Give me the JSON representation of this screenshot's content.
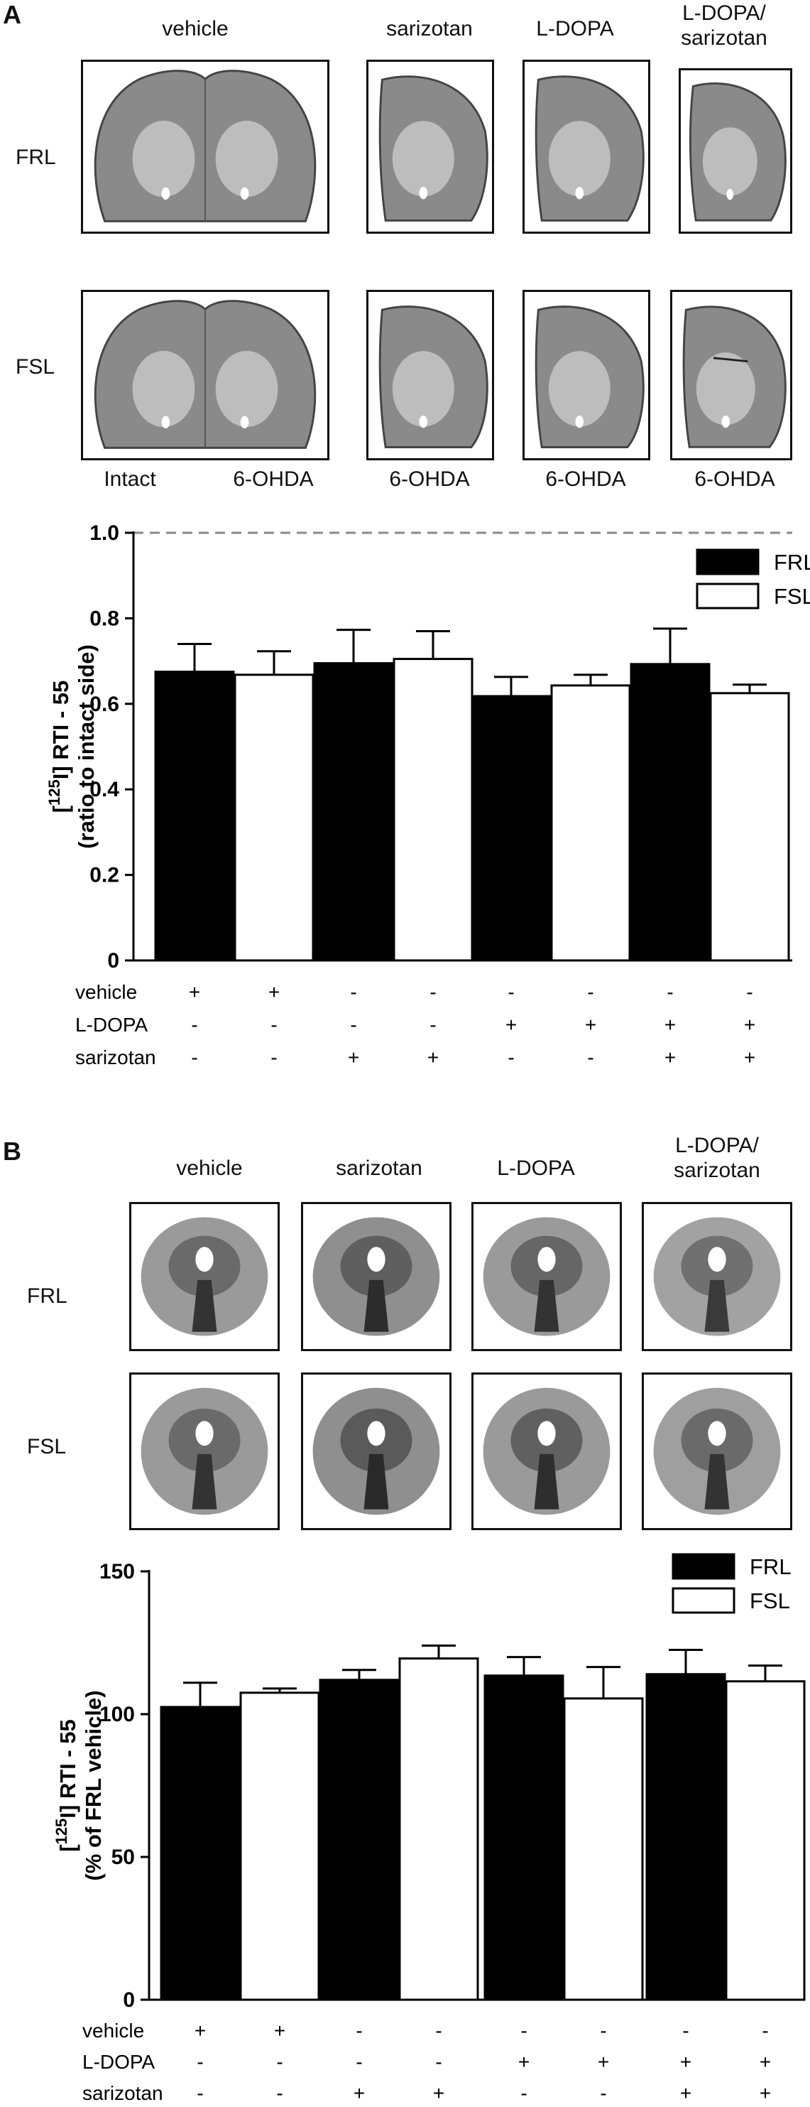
{
  "panel_a": {
    "letter": "A",
    "columns": [
      "vehicle",
      "sarizotan",
      "L-DOPA",
      "L-DOPA/\nsarizotan"
    ],
    "rows": [
      "FRL",
      "FSL"
    ],
    "side_labels": [
      "Intact",
      "6-OHDA",
      "6-OHDA",
      "6-OHDA",
      "6-OHDA"
    ]
  },
  "panel_b": {
    "letter": "B",
    "columns": [
      "vehicle",
      "sarizotan",
      "L-DOPA",
      "L-DOPA/\nsarizotan"
    ],
    "rows": [
      "FRL",
      "FSL"
    ]
  },
  "chart_data": [
    {
      "type": "bar",
      "ylabel_line1": "[125I] RTI - 55",
      "ylabel_sup": "125",
      "ylabel_line1_pre": "[",
      "ylabel_line1_post": "I] RTI - 55",
      "ylabel_line2": "(ratio to intact side)",
      "ylim": [
        0,
        1.0
      ],
      "yticks": [
        "0",
        "0.2",
        "0.4",
        "0.6",
        "0.8",
        "1.0"
      ],
      "reference_line": 1.0,
      "legend_position": "top-right",
      "series": [
        {
          "name": "FRL",
          "color": "#000000",
          "values": [
            0.675,
            0.695,
            0.618,
            0.693
          ],
          "errors": [
            0.065,
            0.078,
            0.045,
            0.083
          ]
        },
        {
          "name": "FSL",
          "color": "#ffffff",
          "values": [
            0.668,
            0.705,
            0.643,
            0.625
          ],
          "errors": [
            0.055,
            0.065,
            0.025,
            0.02
          ]
        }
      ],
      "treatments": [
        {
          "name": "vehicle",
          "signs": [
            "+",
            "+",
            "-",
            "-",
            "-",
            "-",
            "-",
            "-"
          ]
        },
        {
          "name": "L-DOPA",
          "signs": [
            "-",
            "-",
            "-",
            "-",
            "+",
            "+",
            "+",
            "+"
          ]
        },
        {
          "name": "sarizotan",
          "signs": [
            "-",
            "-",
            "+",
            "+",
            "-",
            "-",
            "+",
            "+"
          ]
        }
      ]
    },
    {
      "type": "bar",
      "ylabel_sup": "125",
      "ylabel_line1_pre": "[",
      "ylabel_line1_post": "I] RTI - 55",
      "ylabel_line2": "(% of FRL vehicle)",
      "ylim": [
        0,
        150
      ],
      "yticks": [
        "0",
        "50",
        "100",
        "150"
      ],
      "legend_position": "top-right",
      "series": [
        {
          "name": "FRL",
          "color": "#000000",
          "values": [
            102.5,
            112.0,
            113.5,
            114.0
          ],
          "errors": [
            8.5,
            3.5,
            6.5,
            8.5
          ]
        },
        {
          "name": "FSL",
          "color": "#ffffff",
          "values": [
            107.5,
            119.5,
            105.5,
            111.5
          ],
          "errors": [
            1.5,
            4.5,
            11.0,
            5.5
          ]
        }
      ],
      "treatments": [
        {
          "name": "vehicle",
          "signs": [
            "+",
            "+",
            "-",
            "-",
            "-",
            "-",
            "-",
            "-"
          ]
        },
        {
          "name": "L-DOPA",
          "signs": [
            "-",
            "-",
            "-",
            "-",
            "+",
            "+",
            "+",
            "+"
          ]
        },
        {
          "name": "sarizotan",
          "signs": [
            "-",
            "-",
            "+",
            "+",
            "-",
            "-",
            "+",
            "+"
          ]
        }
      ]
    }
  ]
}
